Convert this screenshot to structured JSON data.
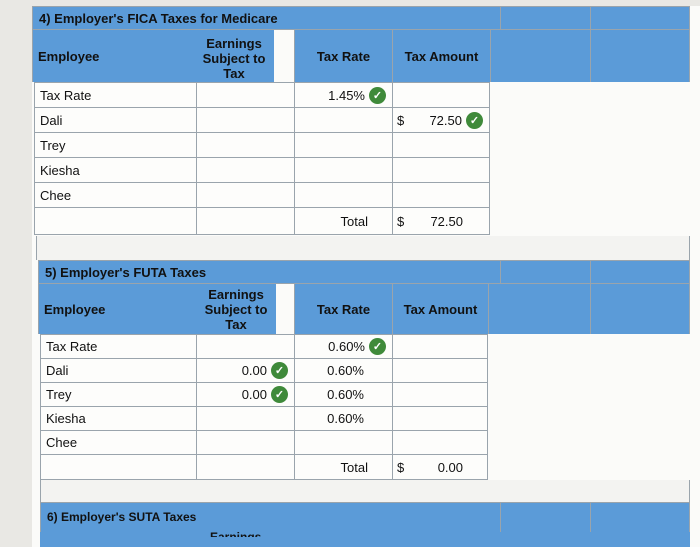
{
  "fica": {
    "title": "4) Employer's FICA Taxes for Medicare",
    "headers": {
      "employee": "Employee",
      "earnings": "Earnings Subject to Tax",
      "tax_rate": "Tax Rate",
      "tax_amount": "Tax Amount"
    },
    "rate_row": {
      "label": "Tax Rate",
      "rate": "1.45%"
    },
    "employees": [
      "Dali",
      "Trey",
      "Kiesha",
      "Chee"
    ],
    "dali_amount": "72.50",
    "currency": "$",
    "total_label": "Total",
    "total_amount": "72.50"
  },
  "futa": {
    "title": "5) Employer's FUTA Taxes",
    "headers": {
      "employee": "Employee",
      "earnings": "Earnings Subject to Tax",
      "tax_rate": "Tax Rate",
      "tax_amount": "Tax Amount"
    },
    "rate_row": {
      "label": "Tax Rate",
      "rate": "0.60%"
    },
    "employees": [
      "Dali",
      "Trey",
      "Kiesha",
      "Chee"
    ],
    "earnings": [
      "0.00",
      "0.00"
    ],
    "rates": [
      "0.60%",
      "0.60%",
      "0.60%"
    ],
    "currency": "$",
    "total_label": "Total",
    "total_amount": "0.00"
  },
  "suta": {
    "title": "6) Employer's SUTA Taxes",
    "partial_header": "Earnings"
  },
  "icons": {
    "check": "check-circle-icon"
  },
  "colors": {
    "header_blue": "#5b9bd8",
    "check_green": "#3f8a3a"
  }
}
